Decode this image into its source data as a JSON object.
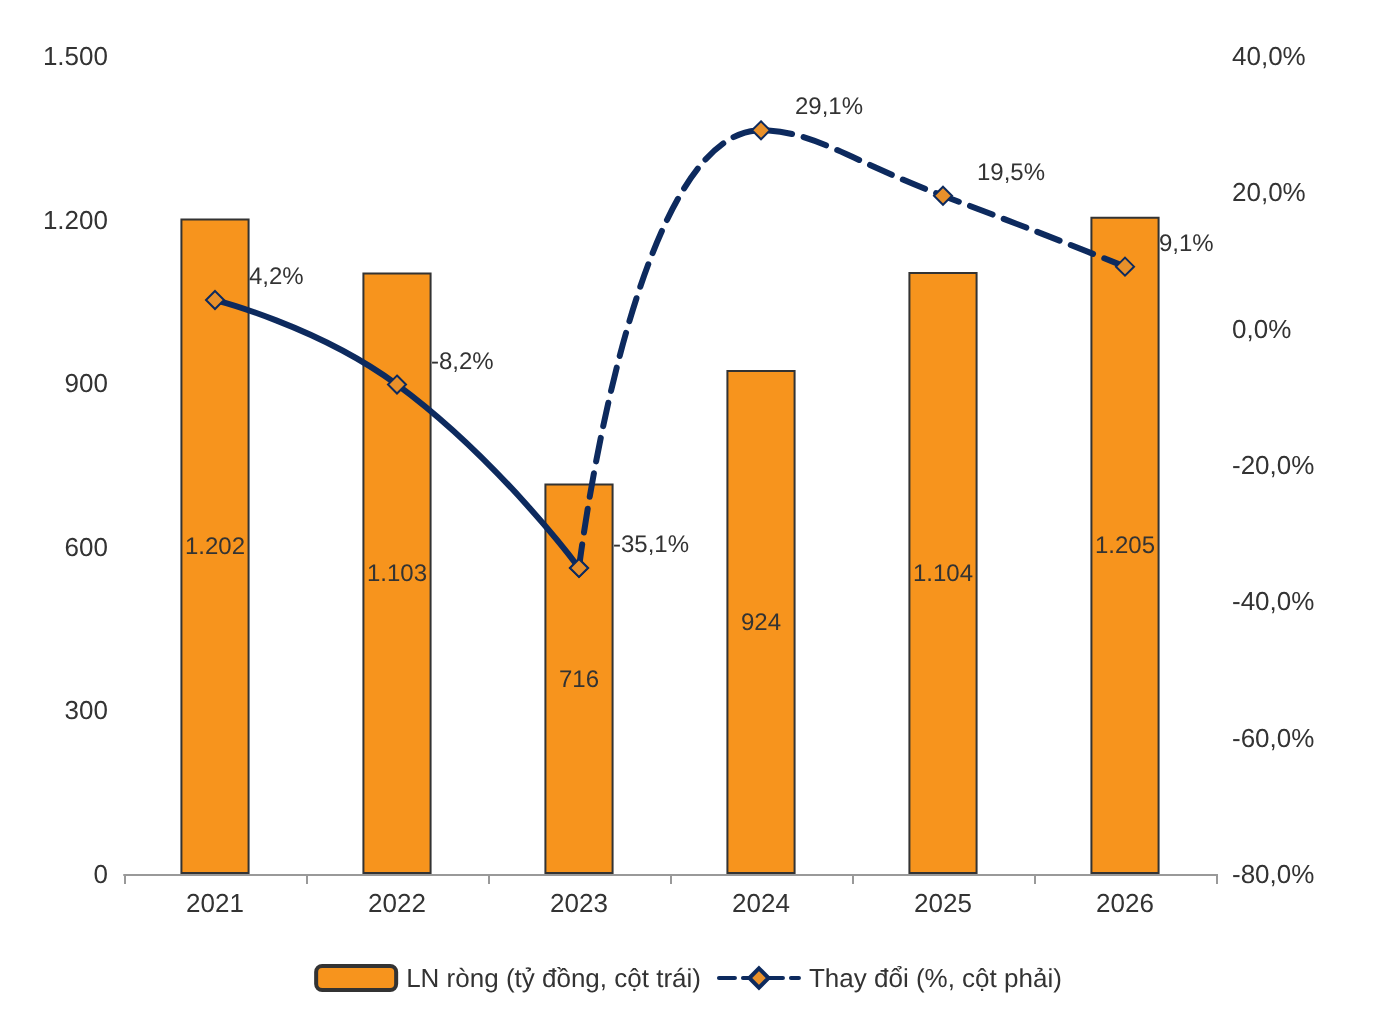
{
  "chart_data": {
    "type": "bar",
    "categories": [
      "2021",
      "2022",
      "2023",
      "2024",
      "2025",
      "2026"
    ],
    "series": [
      {
        "name": "LN ròng (tỷ đồng, cột trái)",
        "color": "#f7941d",
        "values": [
          1202,
          1103,
          716,
          924,
          1104,
          1205
        ],
        "value_labels": [
          "1.202",
          "1.103",
          "716",
          "924",
          "1.104",
          "1.205"
        ]
      },
      {
        "type": "line",
        "axis": "y2",
        "color": "#0d2a5e",
        "line_style": "solid",
        "marker": "diamond",
        "values": [
          4.2,
          -8.2,
          -35.1,
          null,
          null,
          null
        ],
        "value_labels": [
          "4,2%",
          "-8,2%",
          "-35,1%",
          null,
          null,
          null
        ]
      },
      {
        "type": "line",
        "axis": "y2",
        "name": "Thay đổi (%, cột phải)",
        "color": "#0d2a5e",
        "line_style": "dashed",
        "marker": "diamond",
        "values": [
          null,
          null,
          -35.1,
          29.1,
          19.5,
          9.1
        ],
        "value_labels": [
          null,
          null,
          null,
          "29,1%",
          "19,5%",
          "9,1%"
        ]
      }
    ],
    "ylim": [
      0,
      1500
    ],
    "yticks": [
      0,
      300,
      600,
      900,
      {
        "value": 1200,
        "label": "1.200"
      },
      {
        "value": 1500,
        "label": "1.500"
      }
    ],
    "y2lim": [
      -80,
      40
    ],
    "y2ticks": [
      {
        "value": -80,
        "label": "-80,0%"
      },
      {
        "value": -60,
        "label": "-60,0%"
      },
      {
        "value": -40,
        "label": "-40,0%"
      },
      {
        "value": -20,
        "label": "-20,0%"
      },
      {
        "value": 0,
        "label": "0,0%"
      },
      {
        "value": 20,
        "label": "20,0%"
      },
      {
        "value": 40,
        "label": "40,0%"
      }
    ],
    "grid": false,
    "legend": "bottom"
  }
}
